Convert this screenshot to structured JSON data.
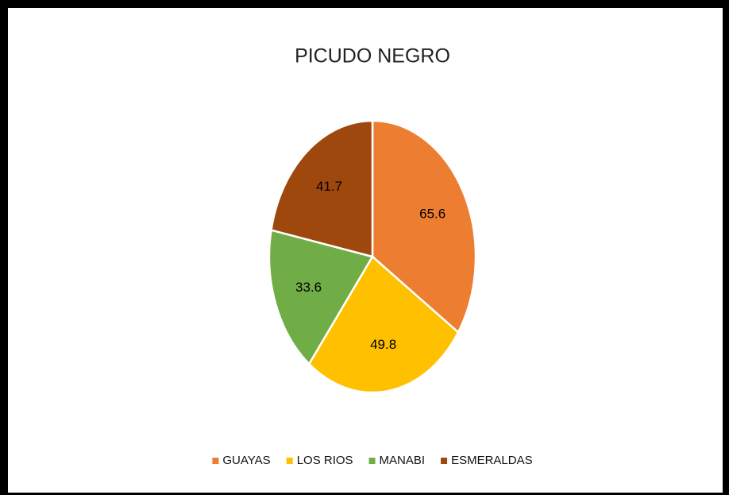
{
  "chart_data": {
    "type": "pie",
    "title": "PICUDO NEGRO",
    "categories": [
      "GUAYAS",
      "LOS RIOS",
      "MANABI",
      "ESMERALDAS"
    ],
    "values": [
      65.6,
      49.8,
      33.6,
      41.7
    ],
    "colors": [
      "#ED7D31",
      "#FFC000",
      "#70AD47",
      "#9E480E"
    ],
    "legend": "bottom"
  }
}
